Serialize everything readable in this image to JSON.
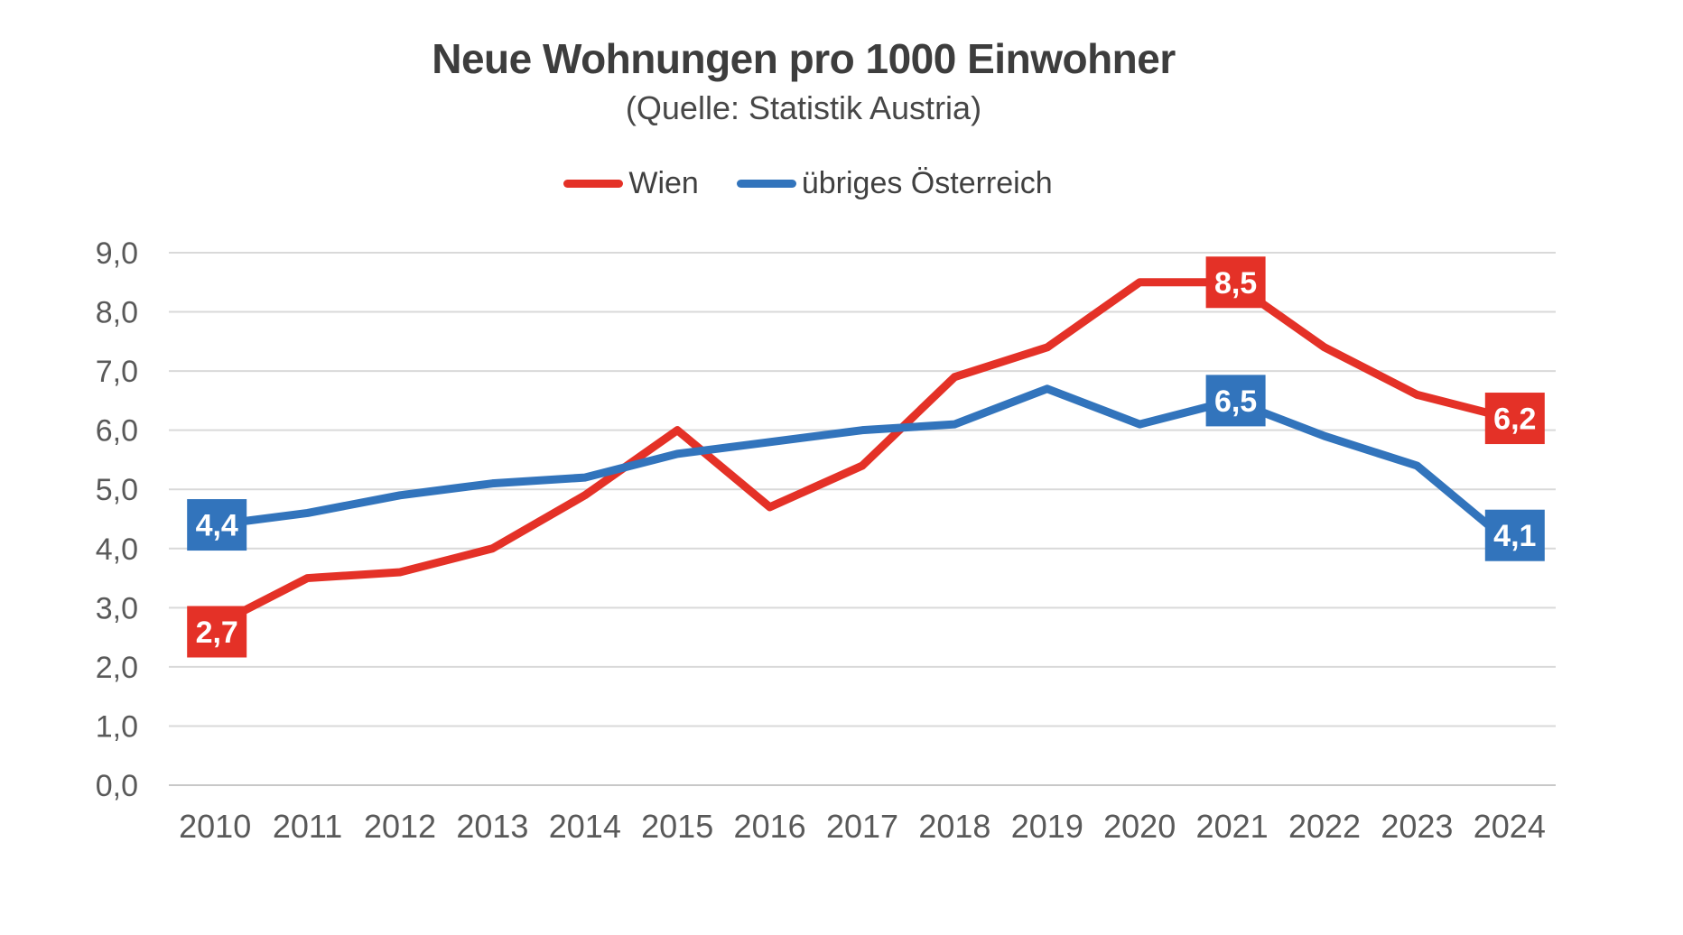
{
  "chart": {
    "title": "Neue Wohnungen pro 1000 Einwohner",
    "subtitle": "(Quelle: Statistik Austria)"
  },
  "chart_data": {
    "type": "line",
    "title": "Neue Wohnungen pro 1000 Einwohner",
    "subtitle": "(Quelle: Statistik Austria)",
    "categories": [
      "2010",
      "2011",
      "2012",
      "2013",
      "2014",
      "2015",
      "2016",
      "2017",
      "2018",
      "2019",
      "2020",
      "2021",
      "2022",
      "2023",
      "2024"
    ],
    "series": [
      {
        "name": "Wien",
        "color": "#e43127",
        "values": [
          2.7,
          3.5,
          3.6,
          4.0,
          4.9,
          6.0,
          4.7,
          5.4,
          6.9,
          7.4,
          8.5,
          8.5,
          7.4,
          6.6,
          6.2
        ],
        "labels": [
          {
            "index": 0,
            "text": "2,7",
            "dx": 2,
            "dy": 7
          },
          {
            "index": 11,
            "text": "8,5",
            "dx": 4,
            "dy": 0
          },
          {
            "index": 14,
            "text": "6,2",
            "dx": 6,
            "dy": 0
          }
        ]
      },
      {
        "name": "übriges Österreich",
        "color": "#3274bc",
        "values": [
          4.4,
          4.6,
          4.9,
          5.1,
          5.2,
          5.6,
          5.8,
          6.0,
          6.1,
          6.7,
          6.1,
          6.5,
          5.9,
          5.4,
          4.1
        ],
        "labels": [
          {
            "index": 0,
            "text": "4,4",
            "dx": 2,
            "dy": 0
          },
          {
            "index": 11,
            "text": "6,5",
            "dx": 4,
            "dy": 0
          },
          {
            "index": 14,
            "text": "4,1",
            "dx": 6,
            "dy": -8
          }
        ]
      }
    ],
    "xlabel": "",
    "ylabel": "",
    "ylim": [
      0,
      9
    ],
    "ytick_step": 1,
    "ytick_labels": [
      "0,0",
      "1,0",
      "2,0",
      "3,0",
      "4,0",
      "5,0",
      "6,0",
      "7,0",
      "8,0",
      "9,0"
    ],
    "grid": true,
    "legend_position": "top-center",
    "decimal_separator": ",",
    "colors": {
      "gridline": "#d9d9d9",
      "baseline": "#c8c8c8",
      "tick_text": "#595959",
      "title_text": "#3d3d3d",
      "label_text": "#ffffff"
    }
  }
}
